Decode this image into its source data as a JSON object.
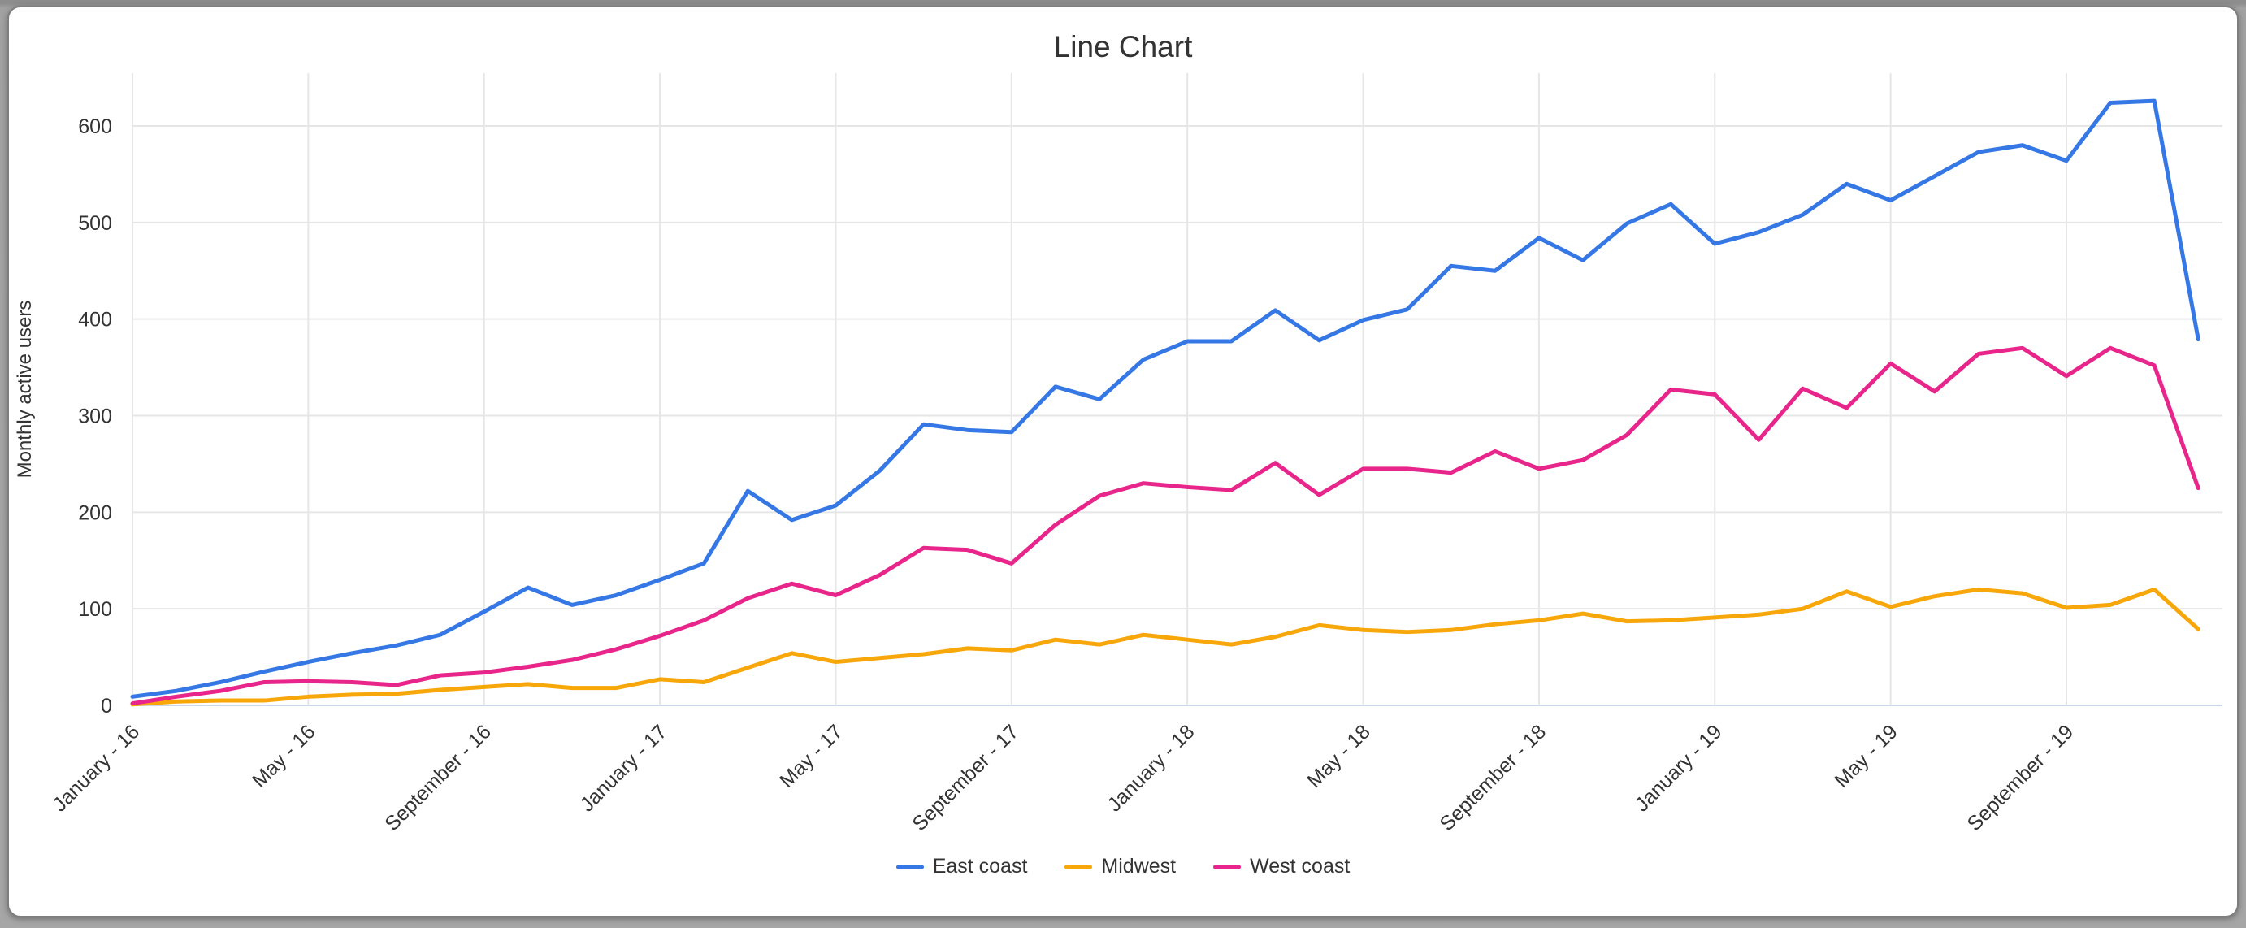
{
  "window": {
    "background_color": "#a2a2a2",
    "card_color": "#ffffff"
  },
  "chart_data": {
    "type": "line",
    "title": "Line Chart",
    "xlabel": "",
    "ylabel": "Monthly active users",
    "ylim": [
      0,
      600
    ],
    "y_ticks": [
      0,
      100,
      200,
      300,
      400,
      500,
      600
    ],
    "grid": true,
    "legend_position": "bottom",
    "n_points": 48,
    "x_tick_every": 4,
    "x_tick_labels": [
      "January - 16",
      "May - 16",
      "September - 16",
      "January - 17",
      "May - 17",
      "September - 17",
      "January - 18",
      "May - 18",
      "September - 18",
      "January - 19",
      "May - 19",
      "September - 19"
    ],
    "colors": {
      "grid": "#e6e6e6",
      "axis_line": "#ccd6eb",
      "text": "#333333"
    },
    "series": [
      {
        "name": "East coast",
        "color": "#3578e5",
        "values": [
          9,
          15,
          24,
          35,
          45,
          54,
          62,
          73,
          97,
          122,
          104,
          114,
          130,
          147,
          222,
          192,
          207,
          243,
          291,
          285,
          283,
          330,
          317,
          358,
          377,
          377,
          409,
          378,
          399,
          410,
          455,
          450,
          484,
          461,
          499,
          519,
          478,
          490,
          508,
          540,
          523,
          548,
          573,
          580,
          564,
          624,
          626,
          379
        ]
      },
      {
        "name": "Midwest",
        "color": "#f8a70b",
        "values": [
          1,
          4,
          5,
          5,
          9,
          11,
          12,
          16,
          19,
          22,
          18,
          18,
          27,
          24,
          39,
          54,
          45,
          49,
          53,
          59,
          57,
          68,
          63,
          73,
          68,
          63,
          71,
          83,
          78,
          76,
          78,
          84,
          88,
          95,
          87,
          88,
          91,
          94,
          100,
          118,
          102,
          113,
          120,
          116,
          101,
          104,
          120,
          79
        ]
      },
      {
        "name": "West coast",
        "color": "#e8258a",
        "values": [
          2,
          9,
          15,
          24,
          25,
          24,
          21,
          31,
          34,
          40,
          47,
          58,
          72,
          88,
          111,
          126,
          114,
          135,
          163,
          161,
          147,
          187,
          217,
          230,
          226,
          223,
          251,
          218,
          245,
          245,
          241,
          263,
          245,
          254,
          280,
          327,
          322,
          275,
          328,
          308,
          354,
          325,
          364,
          370,
          341,
          370,
          352,
          225
        ]
      }
    ]
  }
}
